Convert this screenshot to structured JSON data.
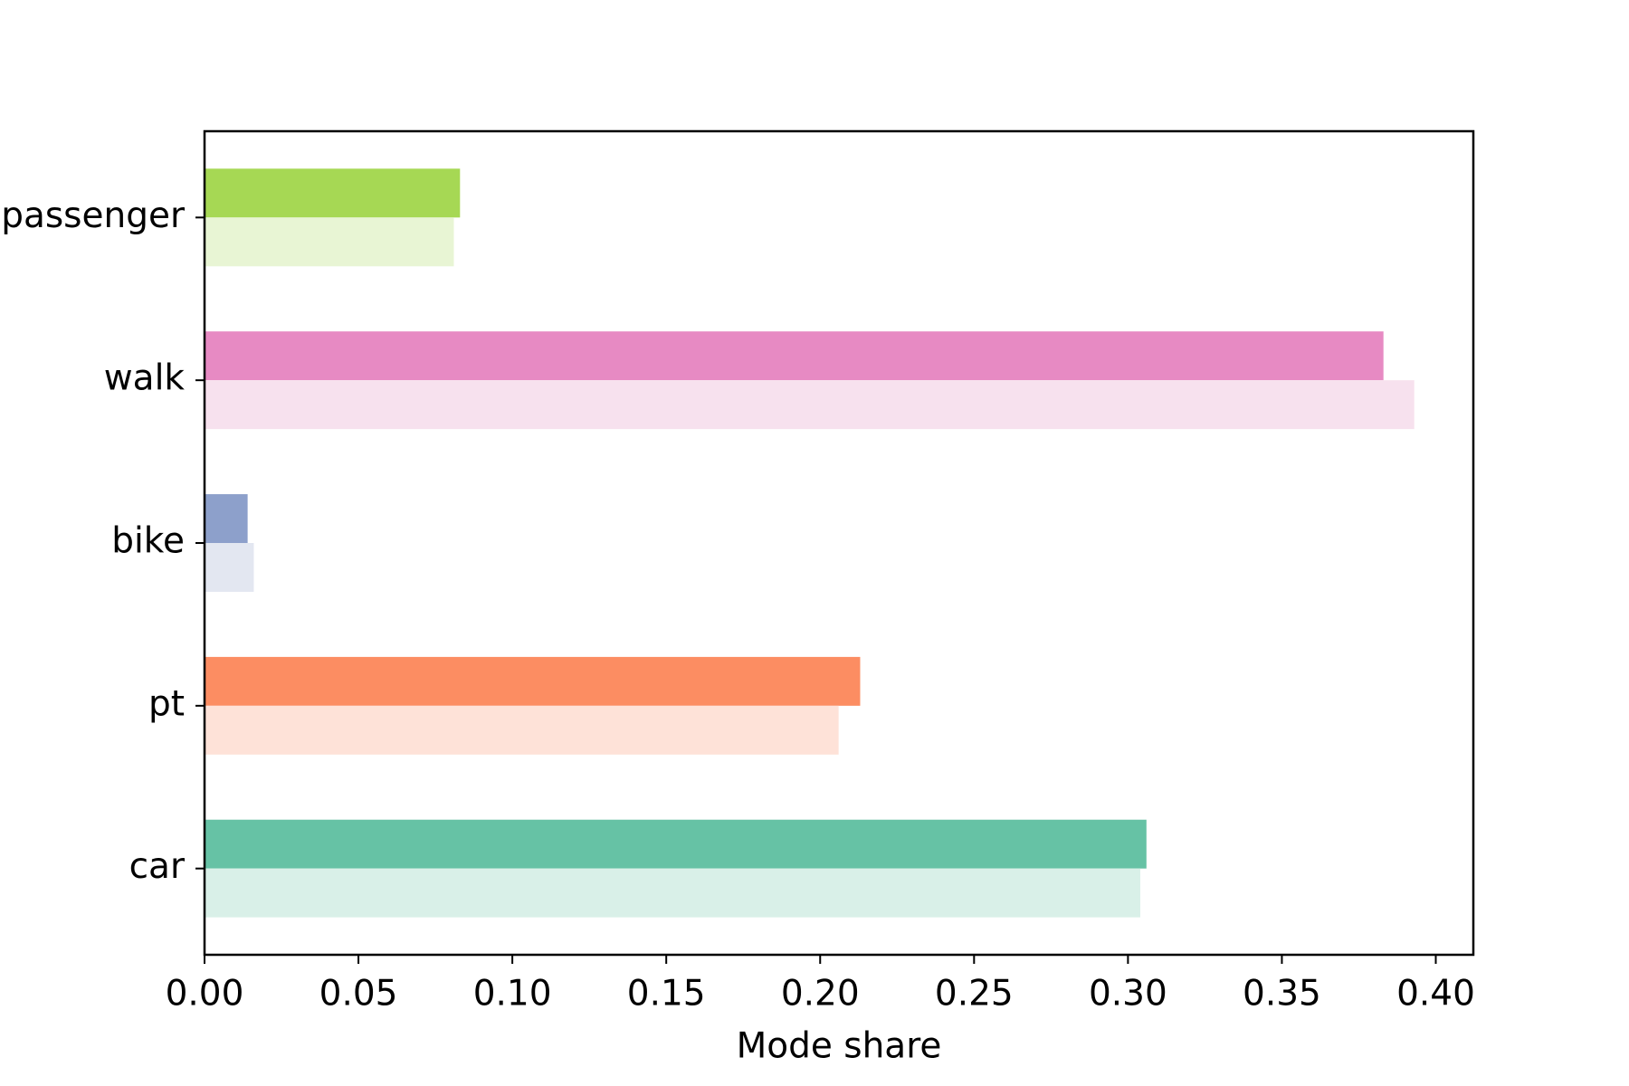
{
  "chart_data": {
    "type": "barh",
    "categories": [
      "car",
      "pt",
      "bike",
      "walk",
      "passenger"
    ],
    "series": [
      {
        "colors": [
          "#66c2a5",
          "#fc8d62",
          "#8da0cb",
          "#e78ac3",
          "#a6d854"
        ],
        "values": [
          0.306,
          0.213,
          0.014,
          0.383,
          0.083
        ]
      },
      {
        "colors": [
          "#d9f0e8",
          "#fee2d8",
          "#e3e7f1",
          "#f7e1ee",
          "#e8f5d4"
        ],
        "values": [
          0.304,
          0.206,
          0.016,
          0.393,
          0.081
        ]
      }
    ],
    "xlabel": "Mode share",
    "xlim": [
      0,
      0.4122
    ],
    "xticks": [
      {
        "value": 0,
        "label": "0.00"
      },
      0.05,
      {
        "value": 0.1,
        "label": "0.10"
      },
      0.15,
      {
        "value": 0.2,
        "label": "0.20"
      },
      0.25,
      {
        "value": 0.3,
        "label": "0.30"
      },
      0.35,
      {
        "value": 0.4,
        "label": "0.40"
      }
    ],
    "grid": false
  }
}
